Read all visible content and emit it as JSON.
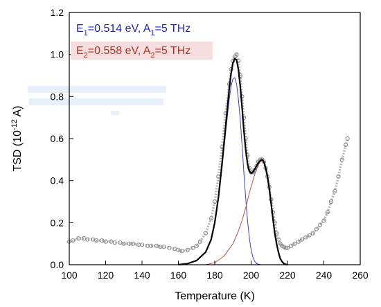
{
  "chart_data": {
    "type": "line",
    "xlabel": "Temperature (K)",
    "ylabel": {
      "main": "TSD (10",
      "sup": "-12",
      "tail": " A)"
    },
    "xlim": [
      100,
      260
    ],
    "ylim": [
      0,
      1.2
    ],
    "xticks": [
      "100",
      "120",
      "140",
      "160",
      "180",
      "200",
      "220",
      "240",
      "260"
    ],
    "yticks": [
      "0.0",
      "0.2",
      "0.4",
      "0.6",
      "0.8",
      "1.0",
      "1.2"
    ],
    "annotations": [
      {
        "color": "#1f1fc8",
        "parts": [
          {
            "t": "E",
            "sub": false
          },
          {
            "t": "1",
            "sub": true
          },
          {
            "t": "=0.514 eV, A",
            "sub": false
          },
          {
            "t": "1",
            "sub": true
          },
          {
            "t": "=5 THz",
            "sub": false
          }
        ]
      },
      {
        "color": "#b03020",
        "highlight": "#f6dede",
        "parts": [
          {
            "t": "E",
            "sub": false
          },
          {
            "t": "2",
            "sub": true
          },
          {
            "t": "=0.558 eV, A",
            "sub": false
          },
          {
            "t": "2",
            "sub": true
          },
          {
            "t": "=5 THz",
            "sub": false
          }
        ]
      }
    ],
    "series": [
      {
        "kind": "measured",
        "color": "#8a8a8a",
        "x": [
          100,
          102,
          105,
          108,
          110,
          113,
          115,
          118,
          120,
          123,
          125,
          128,
          130,
          133,
          135,
          138,
          140,
          143,
          145,
          148,
          150,
          152,
          155,
          158,
          160,
          162,
          165,
          168,
          170,
          172,
          175,
          178,
          180,
          182,
          184,
          186,
          188,
          189,
          190,
          191,
          192,
          193,
          194,
          195,
          196,
          197,
          198,
          199,
          200,
          201,
          202,
          203,
          204,
          205,
          206,
          207,
          208,
          209,
          210,
          211,
          212,
          213,
          214,
          215,
          216,
          217,
          218,
          219,
          220,
          222,
          224,
          226,
          228,
          230,
          232,
          234,
          236,
          238,
          240,
          242,
          244,
          246,
          248,
          250,
          252,
          253
        ],
        "y": [
          0.11,
          0.115,
          0.125,
          0.125,
          0.12,
          0.12,
          0.115,
          0.115,
          0.11,
          0.11,
          0.105,
          0.105,
          0.1,
          0.1,
          0.1,
          0.095,
          0.095,
          0.09,
          0.09,
          0.09,
          0.085,
          0.085,
          0.08,
          0.075,
          0.07,
          0.065,
          0.07,
          0.08,
          0.09,
          0.11,
          0.15,
          0.22,
          0.3,
          0.42,
          0.56,
          0.72,
          0.86,
          0.93,
          0.97,
          0.99,
          1.0,
          0.97,
          0.9,
          0.8,
          0.7,
          0.6,
          0.52,
          0.46,
          0.44,
          0.44,
          0.45,
          0.47,
          0.49,
          0.5,
          0.5,
          0.49,
          0.46,
          0.42,
          0.37,
          0.31,
          0.25,
          0.2,
          0.15,
          0.12,
          0.1,
          0.09,
          0.085,
          0.08,
          0.08,
          0.09,
          0.1,
          0.11,
          0.12,
          0.13,
          0.14,
          0.15,
          0.17,
          0.19,
          0.21,
          0.25,
          0.3,
          0.35,
          0.42,
          0.5,
          0.57,
          0.6
        ]
      },
      {
        "kind": "fit",
        "color": "#000000",
        "x": [
          160,
          165,
          170,
          175,
          178,
          180,
          182,
          184,
          186,
          188,
          189,
          190,
          191,
          192,
          193,
          194,
          195,
          196,
          197,
          198,
          199,
          200,
          201,
          202,
          203,
          204,
          205,
          206,
          207,
          208,
          209,
          210,
          211,
          212,
          213,
          214,
          215,
          216,
          217,
          218,
          219,
          220
        ],
        "y": [
          0.0,
          0.005,
          0.02,
          0.06,
          0.12,
          0.2,
          0.32,
          0.48,
          0.66,
          0.84,
          0.91,
          0.96,
          0.98,
          0.975,
          0.93,
          0.85,
          0.75,
          0.64,
          0.55,
          0.48,
          0.445,
          0.435,
          0.44,
          0.455,
          0.47,
          0.485,
          0.495,
          0.5,
          0.49,
          0.46,
          0.42,
          0.36,
          0.29,
          0.22,
          0.15,
          0.1,
          0.06,
          0.03,
          0.015,
          0.005,
          0.002,
          0.0
        ]
      },
      {
        "kind": "component",
        "color": "#3a3ad8",
        "x": [
          160,
          165,
          170,
          175,
          178,
          180,
          182,
          184,
          186,
          188,
          189,
          190,
          191,
          192,
          193,
          194,
          195,
          196,
          197,
          198,
          199,
          200,
          201,
          202,
          203,
          205
        ],
        "y": [
          0.0,
          0.005,
          0.02,
          0.06,
          0.12,
          0.2,
          0.31,
          0.46,
          0.63,
          0.79,
          0.85,
          0.885,
          0.89,
          0.86,
          0.79,
          0.69,
          0.57,
          0.44,
          0.32,
          0.21,
          0.13,
          0.07,
          0.035,
          0.015,
          0.005,
          0.0
        ]
      },
      {
        "kind": "component",
        "color": "#c05040",
        "x": [
          175,
          180,
          185,
          190,
          193,
          195,
          197,
          199,
          200,
          201,
          202,
          203,
          204,
          205,
          206,
          207,
          208,
          209,
          210,
          211,
          212,
          213,
          214,
          215,
          216,
          217,
          218,
          219,
          220
        ],
        "y": [
          0.0,
          0.01,
          0.04,
          0.1,
          0.16,
          0.21,
          0.27,
          0.34,
          0.37,
          0.4,
          0.43,
          0.455,
          0.475,
          0.49,
          0.495,
          0.49,
          0.46,
          0.42,
          0.36,
          0.29,
          0.22,
          0.15,
          0.1,
          0.06,
          0.03,
          0.015,
          0.005,
          0.002,
          0.0
        ]
      }
    ]
  }
}
